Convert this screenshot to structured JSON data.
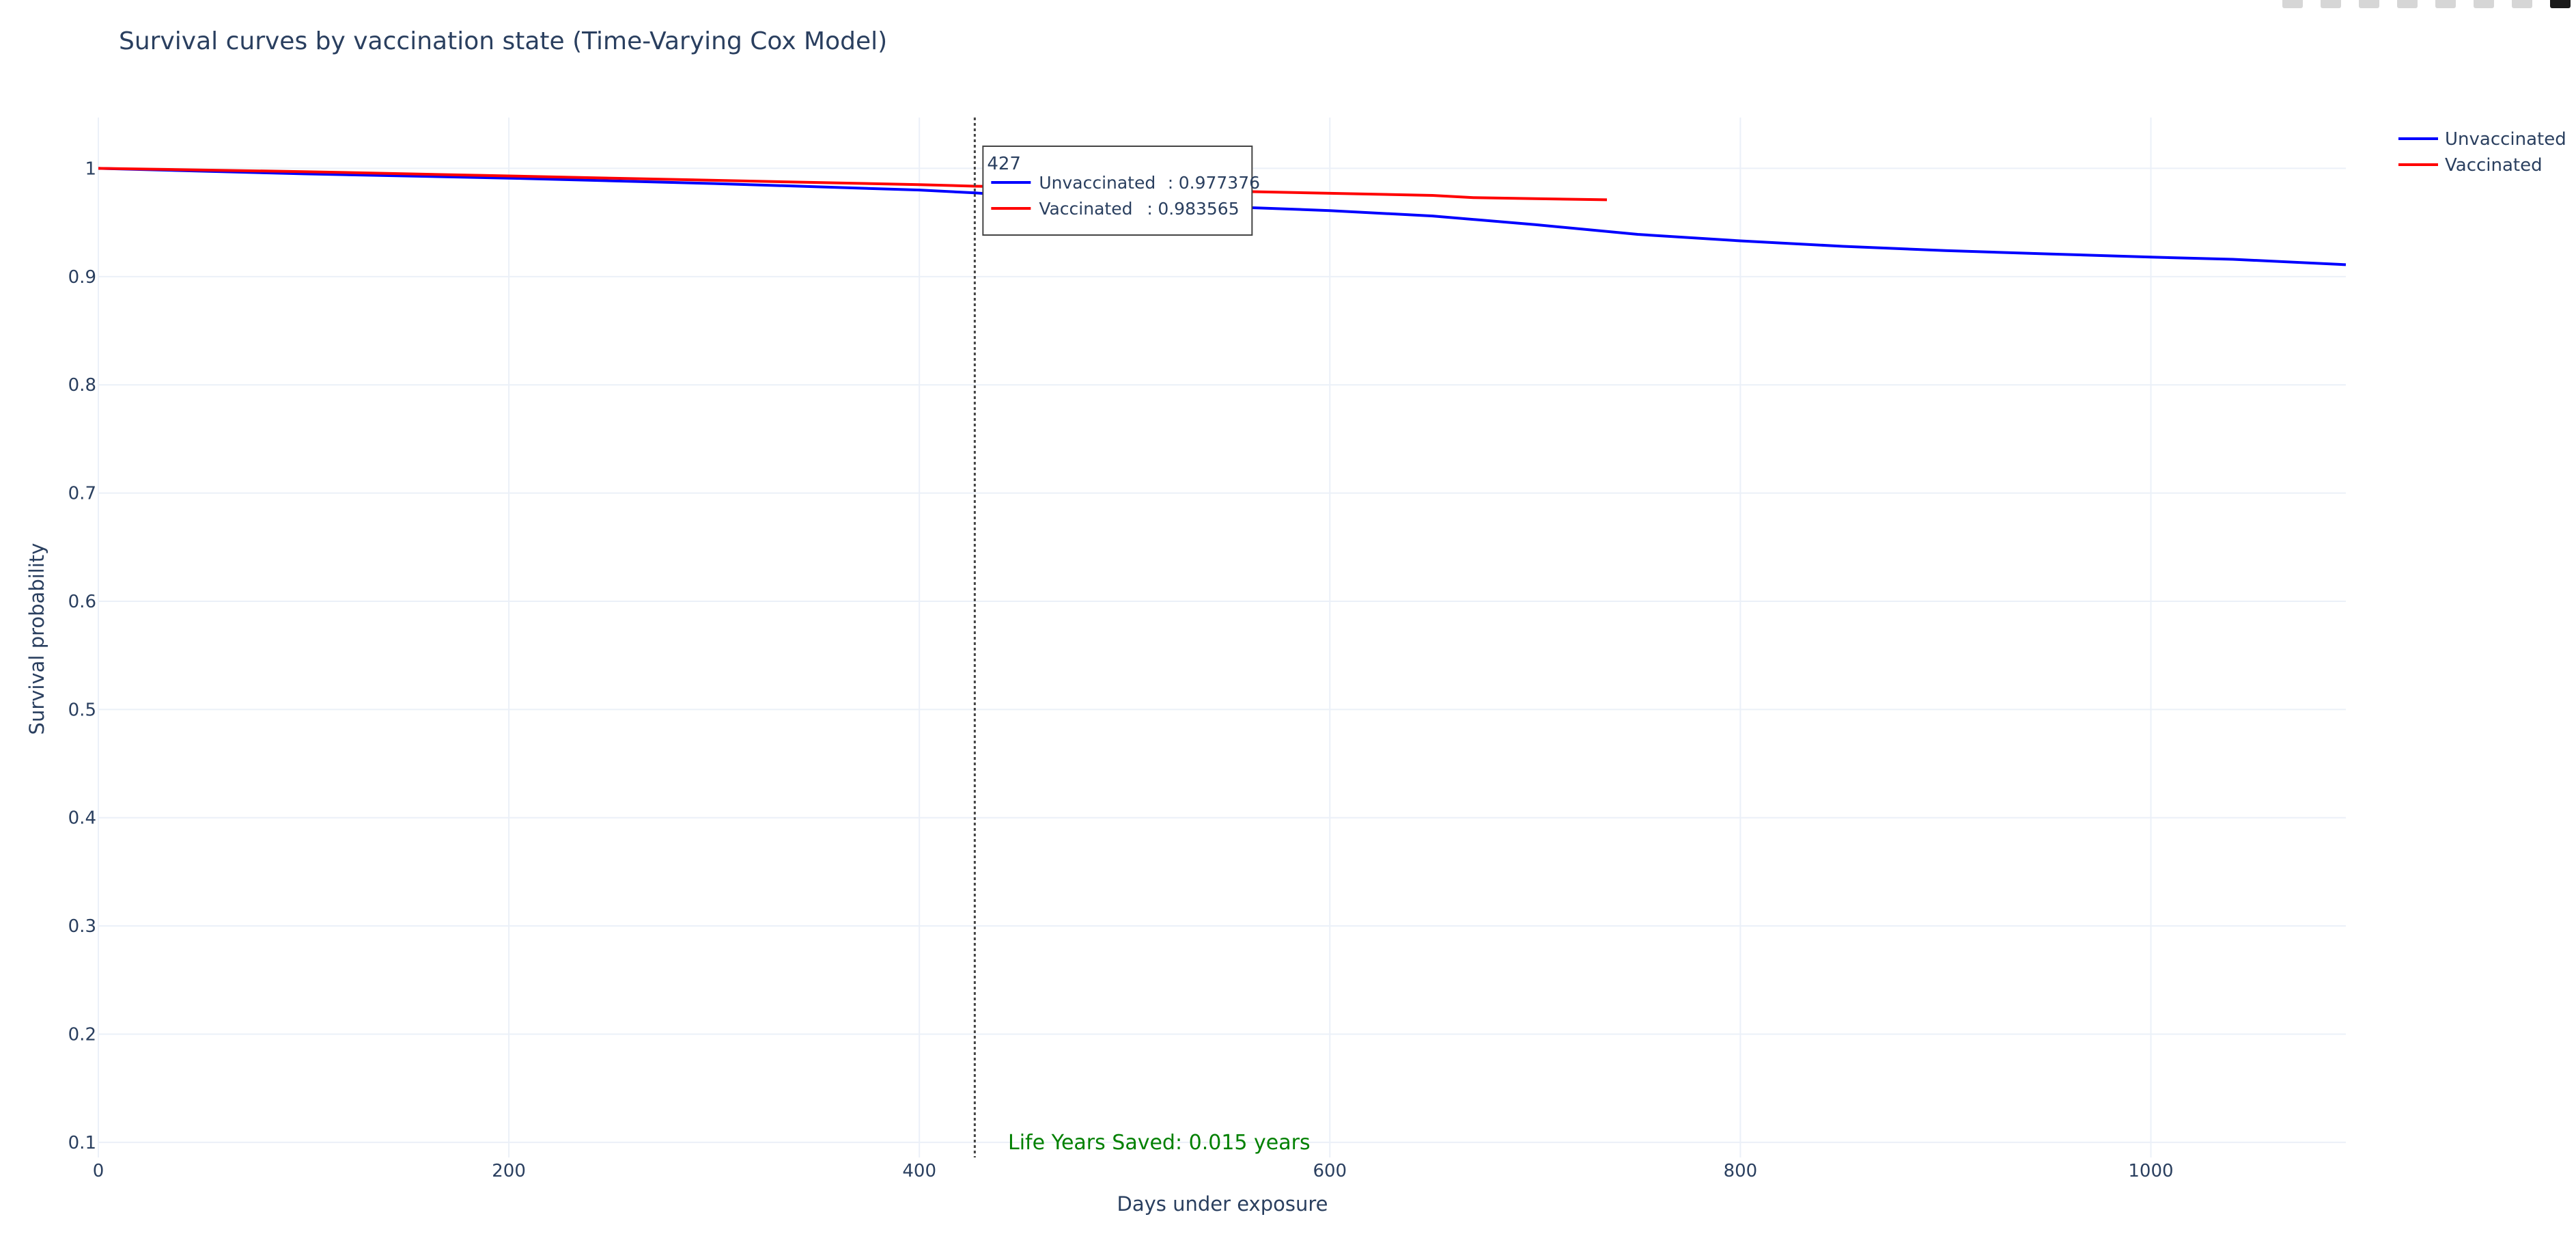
{
  "chart_data": {
    "type": "line",
    "title": "Survival curves by vaccination state (Time-Varying Cox Model)",
    "xlabel": "Days under exposure",
    "ylabel": "Survival probability",
    "xlim": [
      0,
      1095
    ],
    "ylim": [
      0.086,
      1.047
    ],
    "xticks": [
      0,
      200,
      400,
      600,
      800,
      1000
    ],
    "yticks": [
      0.1,
      0.2,
      0.3,
      0.4,
      0.5,
      0.6,
      0.7,
      0.8,
      0.9,
      1
    ],
    "xtick_labels": [
      "0",
      "200",
      "400",
      "600",
      "800",
      "1000"
    ],
    "ytick_labels": [
      "0.1",
      "0.2",
      "0.3",
      "0.4",
      "0.5",
      "0.6",
      "0.7",
      "0.8",
      "0.9",
      "1"
    ],
    "grid": true,
    "legend_position": "top-right",
    "series": [
      {
        "name": "Unvaccinated",
        "color": "#0000ff",
        "x": [
          0,
          100,
          200,
          300,
          400,
          427,
          500,
          600,
          650,
          700,
          750,
          800,
          850,
          900,
          950,
          1000,
          1040,
          1095
        ],
        "y": [
          1.0,
          0.995,
          0.991,
          0.986,
          0.98,
          0.977376,
          0.968,
          0.961,
          0.956,
          0.948,
          0.939,
          0.933,
          0.928,
          0.924,
          0.921,
          0.918,
          0.916,
          0.911
        ]
      },
      {
        "name": "Vaccinated",
        "color": "#ff0000",
        "x": [
          0,
          100,
          200,
          300,
          400,
          427,
          500,
          550,
          600,
          650,
          670,
          700,
          735
        ],
        "y": [
          1.0,
          0.997,
          0.993,
          0.989,
          0.985,
          0.983565,
          0.981,
          0.979,
          0.977,
          0.975,
          0.973,
          0.972,
          0.971
        ]
      }
    ],
    "hover": {
      "x_label": "427",
      "x_value": 427,
      "items": [
        {
          "name": "Unvaccinated",
          "value_text": "0.977376",
          "color": "#0000ff"
        },
        {
          "name": "Vaccinated",
          "value_text": "0.983565",
          "color": "#ff0000"
        }
      ]
    },
    "annotation": {
      "text": "Life Years Saved: 0.015 years",
      "color": "#008000"
    }
  }
}
